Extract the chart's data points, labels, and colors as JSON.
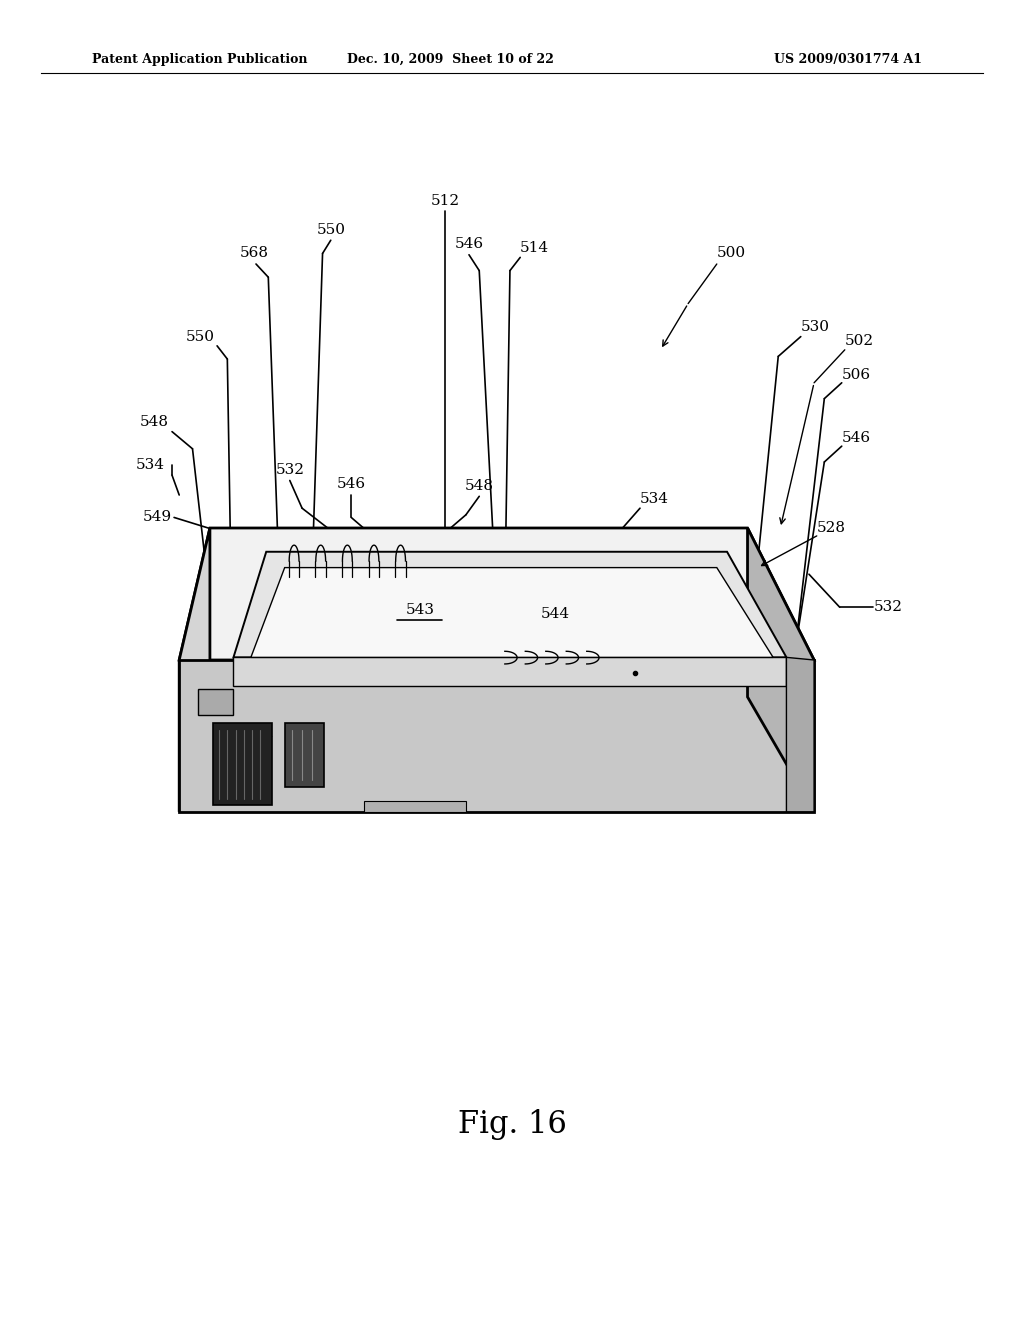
{
  "bg_color": "#ffffff",
  "line_color": "#000000",
  "header_left": "Patent Application Publication",
  "header_center": "Dec. 10, 2009  Sheet 10 of 22",
  "header_right": "US 2009/0301774 A1",
  "fig_label": "Fig. 16",
  "label_fs": 11
}
